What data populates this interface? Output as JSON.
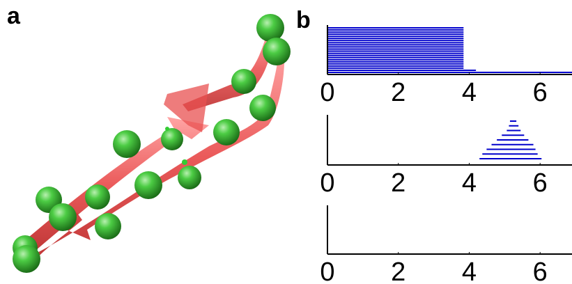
{
  "panel_labels": [
    "a",
    "b"
  ],
  "chart_data": [
    {
      "type": "hlines",
      "color": "#0000cc",
      "xlim": [
        0,
        6.9
      ],
      "xticks": [
        0,
        2,
        4,
        6
      ],
      "starts": [
        0,
        0,
        0,
        0,
        0,
        0,
        0,
        0,
        0,
        0,
        0,
        0,
        0,
        0,
        0,
        0,
        0,
        0,
        0,
        0,
        0,
        0
      ],
      "ends": [
        3.84,
        3.84,
        3.84,
        3.84,
        3.84,
        3.84,
        3.84,
        3.84,
        3.84,
        3.84,
        3.84,
        3.84,
        3.84,
        3.84,
        3.84,
        3.84,
        3.84,
        3.84,
        3.84,
        3.84,
        4.19,
        6.9
      ]
    },
    {
      "type": "hlines",
      "color": "#0000cc",
      "xlim": [
        0,
        6.9
      ],
      "xticks": [
        0,
        2,
        4,
        6
      ],
      "starts": [
        5.15,
        5.12,
        5.06,
        4.92,
        4.78,
        4.63,
        4.49,
        4.37,
        4.29
      ],
      "ends": [
        5.33,
        5.39,
        5.45,
        5.55,
        5.67,
        5.81,
        5.87,
        5.93,
        6.04
      ]
    },
    {
      "type": "hlines",
      "color": "#0000cc",
      "xlim": [
        0,
        6.9
      ],
      "xticks": [
        0,
        2,
        4,
        6
      ],
      "starts": [],
      "ends": []
    }
  ]
}
